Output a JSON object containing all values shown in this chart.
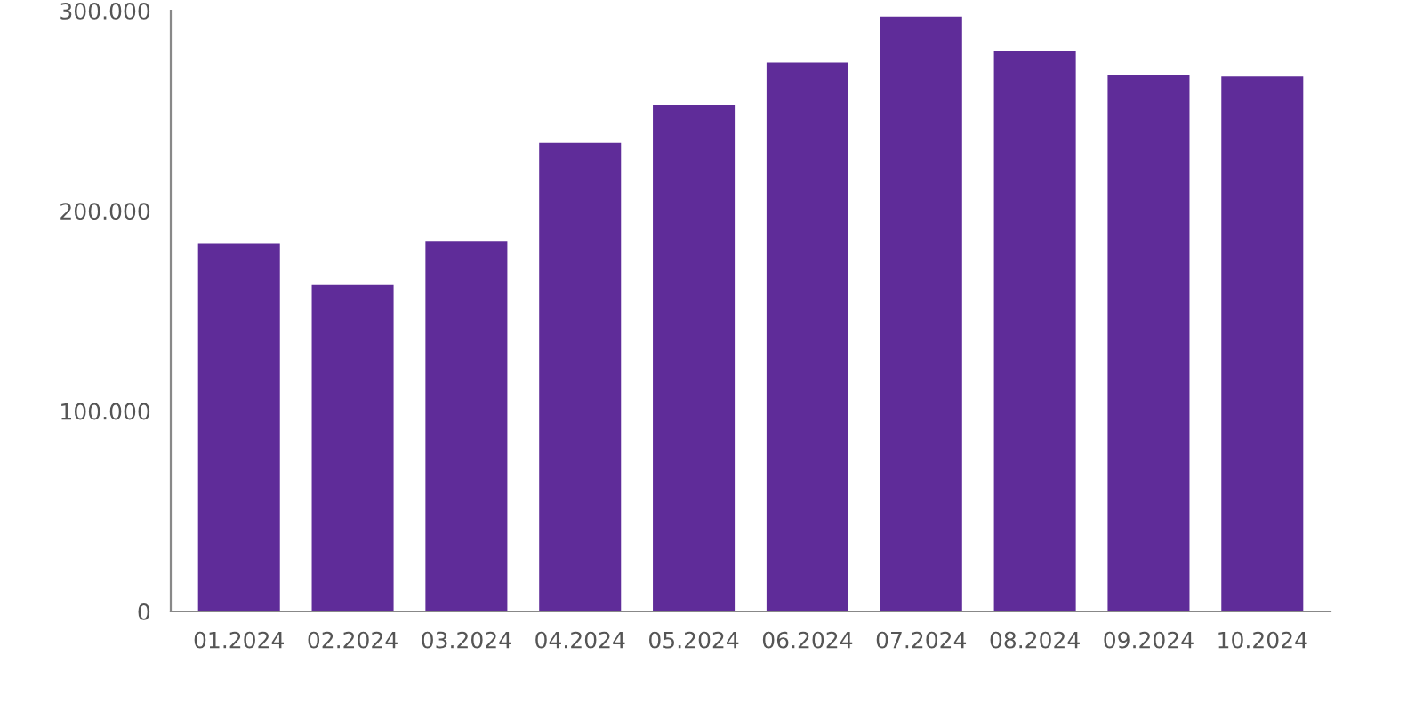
{
  "chart_data": {
    "type": "bar",
    "categories": [
      "01.2024",
      "02.2024",
      "03.2024",
      "04.2024",
      "05.2024",
      "06.2024",
      "07.2024",
      "08.2024",
      "09.2024",
      "10.2024"
    ],
    "values": [
      184000,
      163000,
      185000,
      234000,
      253000,
      274000,
      297000,
      280000,
      268000,
      267000
    ],
    "color": "#5f2c99",
    "ylim": [
      0,
      300000
    ],
    "yticks": [
      0,
      {
        "value": 100000,
        "label": "100.000"
      },
      {
        "value": 200000,
        "label": "200.000"
      },
      {
        "value": 300000,
        "label": "300.000"
      }
    ],
    "grid": false
  }
}
